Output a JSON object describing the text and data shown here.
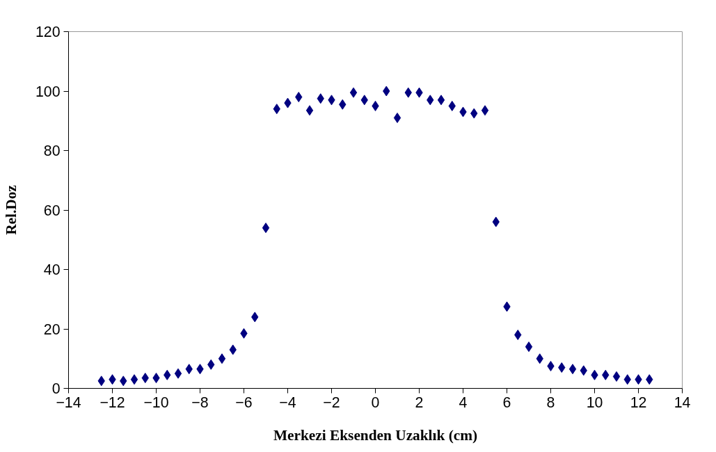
{
  "chart_data": {
    "type": "scatter",
    "xlabel": "Merkezi Eksenden Uzaklık (cm)",
    "ylabel": "Rel.Doz",
    "x": [
      -12.5,
      -12,
      -11.5,
      -11,
      -10.5,
      -10,
      -9.5,
      -9,
      -8.5,
      -8,
      -7.5,
      -7,
      -6.5,
      -6,
      -5.5,
      -5,
      -4.5,
      -4,
      -3.5,
      -3,
      -2.5,
      -2,
      -1.5,
      -1,
      -0.5,
      0,
      0.5,
      1,
      1.5,
      2,
      2.5,
      3,
      3.5,
      4,
      4.5,
      5,
      5.5,
      6,
      6.5,
      7,
      7.5,
      8,
      8.5,
      9,
      9.5,
      10,
      10.5,
      11,
      11.5,
      12,
      12.5
    ],
    "series": [
      {
        "color": "#000080",
        "values": [
          2.5,
          3,
          2.5,
          3,
          3.5,
          3.5,
          4.5,
          5,
          6.5,
          6.5,
          8,
          10,
          13,
          18.5,
          24,
          54,
          94,
          96,
          98,
          93.5,
          97.5,
          97,
          95.5,
          99.5,
          97,
          95,
          100,
          91,
          99.5,
          99.5,
          97,
          97,
          95,
          93,
          92.5,
          93.5,
          56,
          27.5,
          18,
          14,
          10,
          7.5,
          7,
          6.5,
          6,
          4.5,
          4.5,
          4,
          3,
          3,
          3
        ]
      }
    ],
    "xlim": [
      -14,
      14
    ],
    "xticks": [
      -14,
      -12,
      -10,
      -8,
      -6,
      -4,
      -2,
      0,
      2,
      4,
      6,
      8,
      10,
      12,
      14
    ],
    "ylim": [
      0,
      120
    ],
    "yticks": [
      0,
      20,
      40,
      60,
      80,
      100,
      120
    ],
    "grid": false,
    "marker": "diamond"
  }
}
